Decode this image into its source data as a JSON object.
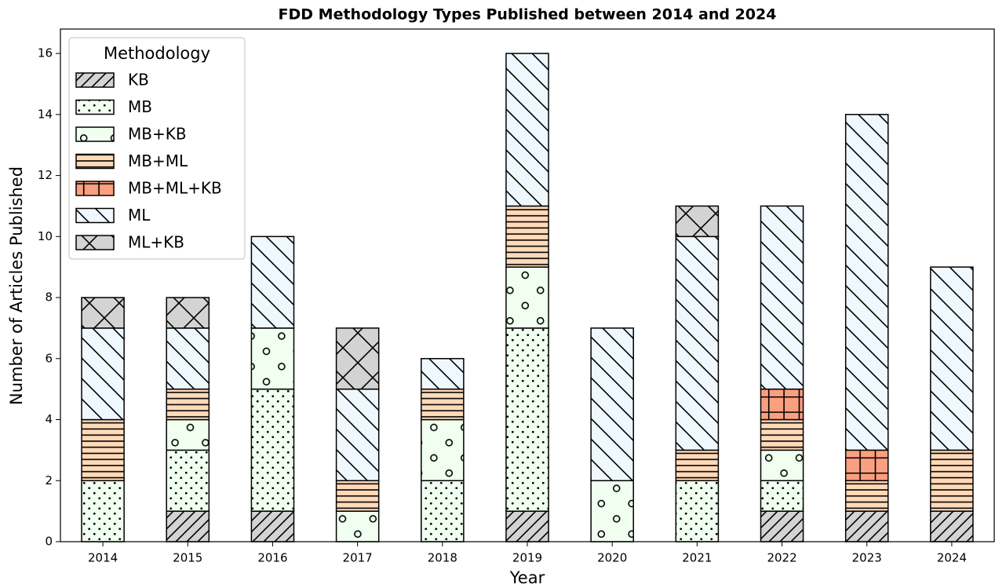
{
  "chart_data": {
    "type": "stacked-bar",
    "title": "FDD Methodology Types Published between 2014 and 2024",
    "x_label": "Year",
    "y_label": "Number of Articles Published",
    "legend_title": "Methodology",
    "legend": "upper left",
    "categories": [
      "2014",
      "2015",
      "2016",
      "2017",
      "2018",
      "2019",
      "2020",
      "2021",
      "2022",
      "2023",
      "2024"
    ],
    "series": [
      {
        "name": "KB",
        "color": "#d3d3d3",
        "hatch": "/",
        "values": [
          0,
          1,
          1,
          0,
          0,
          1,
          0,
          0,
          1,
          1,
          1
        ]
      },
      {
        "name": "MB",
        "color": "#f0fff0",
        "hatch": ".",
        "values": [
          2,
          2,
          4,
          0,
          2,
          6,
          0,
          2,
          1,
          0,
          0
        ]
      },
      {
        "name": "MB+KB",
        "color": "#f0fff0",
        "hatch": "o",
        "values": [
          0,
          1,
          2,
          1,
          2,
          2,
          2,
          0,
          1,
          0,
          0
        ]
      },
      {
        "name": "MB+ML",
        "color": "#ffdab9",
        "hatch": "-",
        "values": [
          2,
          1,
          0,
          1,
          1,
          2,
          0,
          1,
          1,
          1,
          2
        ]
      },
      {
        "name": "MB+ML+KB",
        "color": "#fa9f7f",
        "hatch": "+",
        "values": [
          0,
          0,
          0,
          0,
          0,
          0,
          0,
          0,
          1,
          1,
          0
        ]
      },
      {
        "name": "ML",
        "color": "#f0f8ff",
        "hatch": "\\",
        "values": [
          3,
          2,
          3,
          3,
          1,
          5,
          5,
          7,
          6,
          11,
          6
        ]
      },
      {
        "name": "ML+KB",
        "color": "#d3d3d3",
        "hatch": "x",
        "values": [
          1,
          1,
          0,
          2,
          0,
          0,
          0,
          1,
          0,
          0,
          0
        ]
      }
    ],
    "ylim": [
      0,
      16.8
    ],
    "yticks": [
      0,
      2,
      4,
      6,
      8,
      10,
      12,
      14,
      16
    ]
  }
}
